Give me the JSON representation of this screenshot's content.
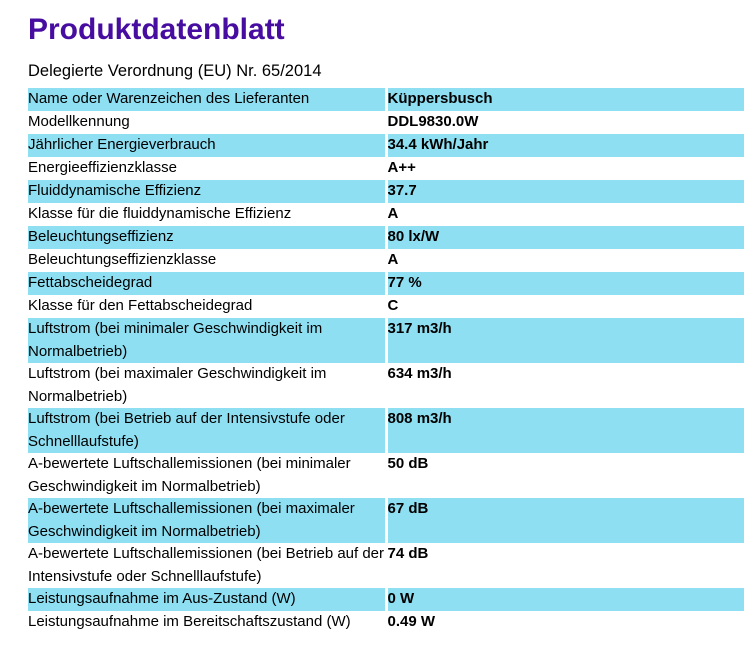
{
  "page": {
    "title": "Produktdatenblatt",
    "subtitle": "Delegierte Verordnung (EU) Nr. 65/2014"
  },
  "colors": {
    "title": "#470ca0",
    "row_highlight": "#8edff2",
    "text": "#000000",
    "background": "#ffffff"
  },
  "table": {
    "rows": [
      {
        "label": "Name oder Warenzeichen des Lieferanten",
        "value": "Küppersbusch",
        "shaded": true
      },
      {
        "label": "Modellkennung",
        "value": "DDL9830.0W",
        "shaded": false
      },
      {
        "label": "Jährlicher Energieverbrauch",
        "value": "34.4 kWh/Jahr",
        "shaded": true
      },
      {
        "label": "Energieeffizienzklasse",
        "value": "A++",
        "shaded": false
      },
      {
        "label": "Fluiddynamische Effizienz",
        "value": "37.7",
        "shaded": true
      },
      {
        "label": "Klasse für die fluiddynamische Effizienz",
        "value": "A",
        "shaded": false
      },
      {
        "label": "Beleuchtungseffizienz",
        "value": "80 lx/W",
        "shaded": true
      },
      {
        "label": "Beleuchtungseffizienzklasse",
        "value": "A",
        "shaded": false
      },
      {
        "label": "Fettabscheidegrad",
        "value": "77 %",
        "shaded": true
      },
      {
        "label": "Klasse für den Fettabscheidegrad",
        "value": "C",
        "shaded": false
      },
      {
        "label": "Luftstrom (bei minimaler Geschwindigkeit im Normalbetrieb)",
        "value": "317 m3/h",
        "shaded": true
      },
      {
        "label": "Luftstrom (bei maximaler Geschwindigkeit im Normalbetrieb)",
        "value": "634 m3/h",
        "shaded": false
      },
      {
        "label": "Luftstrom (bei Betrieb auf der Intensivstufe oder Schnelllaufstufe)",
        "value": "808 m3/h",
        "shaded": true
      },
      {
        "label": "A-bewertete Luftschallemissionen (bei minimaler Geschwindigkeit im Normalbetrieb)",
        "value": "50 dB",
        "shaded": false
      },
      {
        "label": "A-bewertete Luftschallemissionen (bei maximaler Geschwindigkeit im Normalbetrieb)",
        "value": "67 dB",
        "shaded": true
      },
      {
        "label": "A-bewertete Luftschallemissionen (bei Betrieb auf der Intensivstufe oder Schnelllaufstufe)",
        "value": "74 dB",
        "shaded": false
      },
      {
        "label": "Leistungsaufnahme im Aus-Zustand (W)",
        "value": "0 W",
        "shaded": true
      },
      {
        "label": "Leistungsaufnahme im Bereitschaftszustand (W)",
        "value": "0.49 W",
        "shaded": false
      }
    ]
  }
}
